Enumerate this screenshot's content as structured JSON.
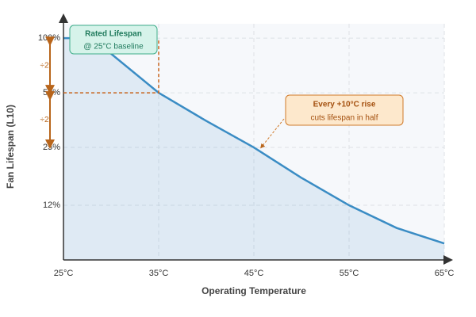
{
  "chart_data": {
    "type": "line",
    "x_label": "Operating Temperature",
    "y_label": "Fan Lifespan (L10)",
    "x": [
      25,
      28,
      35,
      40,
      45,
      50,
      55,
      60,
      65
    ],
    "series": [
      {
        "color": "#3a8cc4",
        "values": [
          100,
          100,
          50,
          35,
          25,
          17,
          12,
          9,
          7.4
        ]
      }
    ],
    "xlim": [
      25,
      65
    ],
    "xticks": [
      {
        "value": 25,
        "label": "25°C"
      },
      {
        "value": 35,
        "label": "35°C"
      },
      {
        "value": 45,
        "label": "45°C"
      },
      {
        "value": 55,
        "label": "55°C"
      },
      {
        "value": 65,
        "label": "65°C"
      }
    ],
    "ylim": [
      6,
      120
    ],
    "log_y": true,
    "yticks": [
      {
        "value": 100,
        "label": "100%"
      },
      {
        "value": 50,
        "label": "50%"
      },
      {
        "value": 25,
        "label": "25%"
      },
      {
        "value": 12,
        "label": "12%"
      }
    ],
    "grid": true,
    "annotations": [
      {
        "title": "Rated Lifespan",
        "text": "@ 25°C baseline"
      },
      {
        "title": "Every +10°C rise",
        "text": "cuts lifespan in half"
      }
    ],
    "halving_labels": [
      "÷2",
      "÷2"
    ]
  }
}
